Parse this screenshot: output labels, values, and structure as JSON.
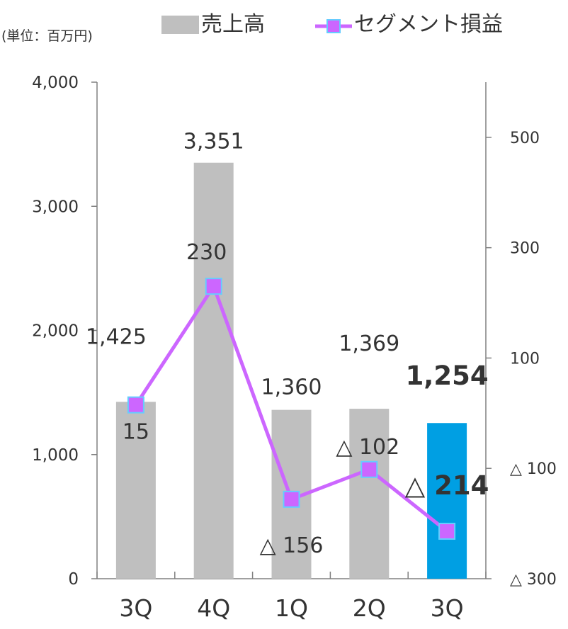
{
  "unit_label": "(単位：百万円)",
  "legend": {
    "bar_label": "売上高",
    "line_label": "セグメント損益"
  },
  "colors": {
    "bar": "#BFBFBF",
    "bar_highlight": "#009FE3",
    "line": "#CC66FF",
    "marker_fill": "#CC66FF",
    "marker_stroke": "#66CCFF",
    "axis": "#808080",
    "text": "#333333"
  },
  "chart_data": {
    "type": "bar",
    "categories": [
      "3Q",
      "4Q",
      "1Q",
      "2Q",
      "3Q"
    ],
    "series": [
      {
        "name": "売上高",
        "type": "bar",
        "axis": "left",
        "values": [
          1425,
          3351,
          1360,
          1369,
          1254
        ],
        "labels": [
          "1,425",
          "3,351",
          "1,360",
          "1,369",
          "1,254"
        ],
        "highlight_index": 4
      },
      {
        "name": "セグメント損益",
        "type": "line",
        "axis": "right",
        "values": [
          15,
          230,
          -156,
          -102,
          -214
        ],
        "labels": [
          "15",
          "230",
          "△ 156",
          "△ 102",
          "△ 214"
        ]
      }
    ],
    "y_left": {
      "min": 0,
      "max": 4000,
      "ticks": [
        0,
        1000,
        2000,
        3000,
        4000
      ],
      "tick_labels": [
        "0",
        "1,000",
        "2,000",
        "3,000",
        "4,000"
      ]
    },
    "y_right": {
      "min": -300,
      "max": 600,
      "ticks": [
        -300,
        -100,
        100,
        300,
        500
      ],
      "tick_labels": [
        "△ 300",
        "△ 100",
        "100",
        "300",
        "500"
      ]
    },
    "grid": false,
    "legend_position": "top"
  }
}
